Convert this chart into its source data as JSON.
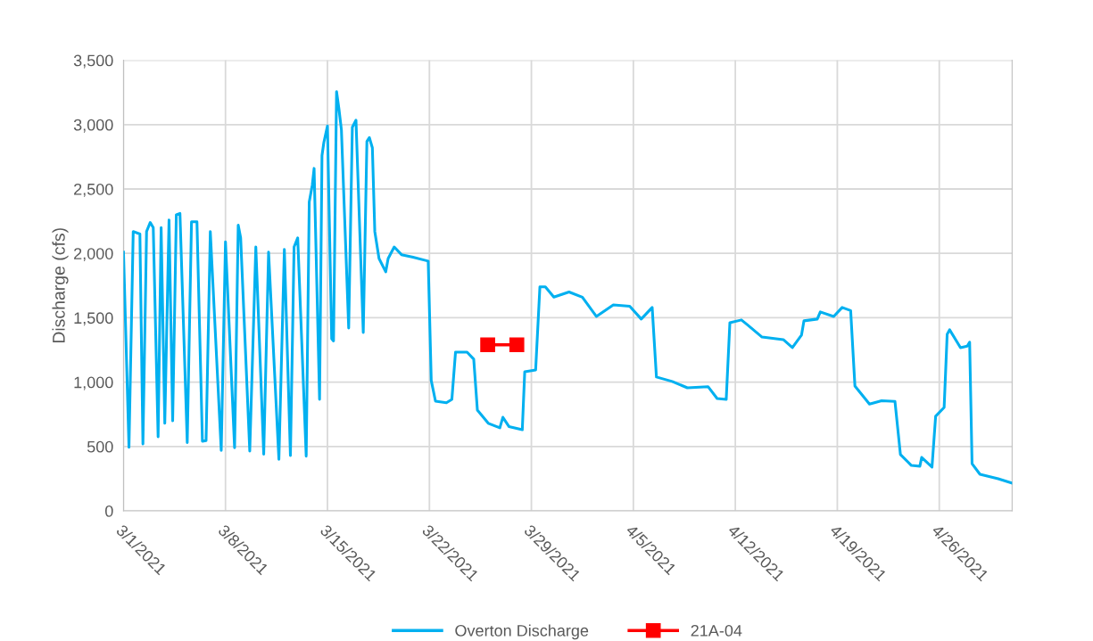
{
  "chart_data": {
    "type": "line",
    "ylabel": "Discharge (cfs)",
    "xlim": [
      "2021-03-01",
      "2021-05-01"
    ],
    "xticks": [
      {
        "value": "2021-03-01",
        "label": "3/1/2021"
      },
      {
        "value": "2021-03-08",
        "label": "3/8/2021"
      },
      {
        "value": "2021-03-15",
        "label": "3/15/2021"
      },
      {
        "value": "2021-03-22",
        "label": "3/22/2021"
      },
      {
        "value": "2021-03-29",
        "label": "3/29/2021"
      },
      {
        "value": "2021-04-05",
        "label": "4/5/2021"
      },
      {
        "value": "2021-04-12",
        "label": "4/12/2021"
      },
      {
        "value": "2021-04-19",
        "label": "4/19/2021"
      },
      {
        "value": "2021-04-26",
        "label": "4/26/2021"
      }
    ],
    "ylim": [
      0,
      3500
    ],
    "yticks": [
      0,
      500,
      {
        "value": 1000,
        "label": "1,000"
      },
      {
        "value": 1500,
        "label": "1,500"
      },
      {
        "value": 2000,
        "label": "2,000"
      },
      {
        "value": 2500,
        "label": "2,500"
      },
      {
        "value": 3000,
        "label": "3,000"
      },
      {
        "value": 3500,
        "label": "3,500"
      }
    ],
    "grid": true,
    "legend": "bottom",
    "series": [
      {
        "name": "Overton Discharge",
        "color": "#00b0f0",
        "marker": "none",
        "x": [
          "2021-03-01T00:00",
          "2021-03-01T09:00",
          "2021-03-01T16:00",
          "2021-03-02T03:00",
          "2021-03-02T08:00",
          "2021-03-02T14:00",
          "2021-03-02T20:00",
          "2021-03-03T01:00",
          "2021-03-03T09:00",
          "2021-03-03T14:00",
          "2021-03-03T20:00",
          "2021-03-04T03:00",
          "2021-03-04T09:00",
          "2021-03-04T15:00",
          "2021-03-04T21:00",
          "2021-03-05T09:00",
          "2021-03-05T16:00",
          "2021-03-06T01:00",
          "2021-03-06T10:00",
          "2021-03-06T16:00",
          "2021-03-06T23:00",
          "2021-03-07T17:00",
          "2021-03-08T00:00",
          "2021-03-08T15:00",
          "2021-03-08T21:00",
          "2021-03-09T01:00",
          "2021-03-09T16:00",
          "2021-03-10T02:00",
          "2021-03-10T15:00",
          "2021-03-10T23:00",
          "2021-03-11T16:00",
          "2021-03-12T01:00",
          "2021-03-12T11:00",
          "2021-03-12T17:00",
          "2021-03-12T23:00",
          "2021-03-13T13:00",
          "2021-03-13T18:00",
          "2021-03-13T23:00",
          "2021-03-14T02:00",
          "2021-03-14T11:00",
          "2021-03-14T15:00",
          "2021-03-14T18:00",
          "2021-03-15T00:00",
          "2021-03-15T07:00",
          "2021-03-15T10:00",
          "2021-03-15T15:00",
          "2021-03-15T19:00",
          "2021-03-15T23:00",
          "2021-03-16T11:00",
          "2021-03-16T17:00",
          "2021-03-16T23:00",
          "2021-03-17T11:00",
          "2021-03-17T17:00",
          "2021-03-17T21:00",
          "2021-03-18T02:00",
          "2021-03-18T06:00",
          "2021-03-18T13:00",
          "2021-03-19T00:00",
          "2021-03-19T04:00",
          "2021-03-19T14:00",
          "2021-03-20T02:00",
          "2021-03-20T21:00",
          "2021-03-21T22:00",
          "2021-03-22T03:00",
          "2021-03-22T10:00",
          "2021-03-23T04:00",
          "2021-03-23T13:00",
          "2021-03-23T19:00",
          "2021-03-24T14:00",
          "2021-03-25T01:00",
          "2021-03-25T07:00",
          "2021-03-26T01:00",
          "2021-03-26T20:00",
          "2021-03-27T01:00",
          "2021-03-27T11:00",
          "2021-03-28T09:00",
          "2021-03-28T13:00",
          "2021-03-29T07:00",
          "2021-03-29T14:00",
          "2021-03-29T23:00",
          "2021-03-30T13:00",
          "2021-03-31T14:00",
          "2021-04-01T12:00",
          "2021-04-02T11:00",
          "2021-04-03T15:00",
          "2021-04-04T18:00",
          "2021-04-05T13:00",
          "2021-04-06T07:00",
          "2021-04-06T14:00",
          "2021-04-07T16:00",
          "2021-04-08T17:00",
          "2021-04-10T03:00",
          "2021-04-10T18:00",
          "2021-04-11T09:00",
          "2021-04-11T15:00",
          "2021-04-12T10:00",
          "2021-04-12T20:00",
          "2021-04-13T20:00",
          "2021-04-15T07:00",
          "2021-04-15T22:00",
          "2021-04-16T13:00",
          "2021-04-16T17:00",
          "2021-04-17T15:00",
          "2021-04-17T20:00",
          "2021-04-18T18:00",
          "2021-04-19T08:00",
          "2021-04-19T22:00",
          "2021-04-20T05:00",
          "2021-04-21T05:00",
          "2021-04-22T01:00",
          "2021-04-22T23:00",
          "2021-04-23T08:00",
          "2021-04-24T02:00",
          "2021-04-24T16:00",
          "2021-04-24T19:00",
          "2021-04-25T12:00",
          "2021-04-25T18:00",
          "2021-04-26T08:00",
          "2021-04-26T13:00",
          "2021-04-26T17:00",
          "2021-04-27T11:00",
          "2021-04-27T22:00",
          "2021-04-28T02:00",
          "2021-04-28T06:00",
          "2021-04-28T19:00",
          "2021-04-30T01:00",
          "2021-05-01T00:00"
        ],
        "values": [
          2010,
          494,
          2170,
          2150,
          520,
          2170,
          2240,
          2200,
          575,
          2200,
          680,
          2260,
          700,
          2300,
          2310,
          530,
          2245,
          2245,
          540,
          545,
          2170,
          470,
          2090,
          490,
          2220,
          2120,
          465,
          2050,
          440,
          2010,
          400,
          2030,
          430,
          2050,
          2120,
          425,
          2400,
          2530,
          2660,
          866,
          2760,
          2860,
          2990,
          1337,
          1320,
          3257,
          3120,
          2960,
          1420,
          2980,
          3035,
          1386,
          2870,
          2900,
          2820,
          2170,
          1960,
          1857,
          1960,
          2050,
          1990,
          1970,
          1940,
          1012,
          852,
          840,
          866,
          1233,
          1233,
          1178,
          783,
          680,
          645,
          727,
          655,
          630,
          1080,
          1095,
          1740,
          1740,
          1660,
          1700,
          1660,
          1510,
          1600,
          1590,
          1490,
          1580,
          1040,
          1005,
          956,
          965,
          873,
          866,
          1462,
          1483,
          1445,
          1350,
          1330,
          1268,
          1365,
          1476,
          1490,
          1545,
          1510,
          1580,
          1556,
          970,
          830,
          855,
          850,
          437,
          353,
          347,
          415,
          340,
          735,
          804,
          1372,
          1407,
          1268,
          1280,
          1310,
          367,
          284,
          250,
          215
        ]
      },
      {
        "name": "21A-04",
        "color": "#ff0000",
        "marker": "square",
        "x": [
          "2021-03-26",
          "2021-03-28"
        ],
        "values": [
          1290,
          1290
        ]
      }
    ]
  }
}
